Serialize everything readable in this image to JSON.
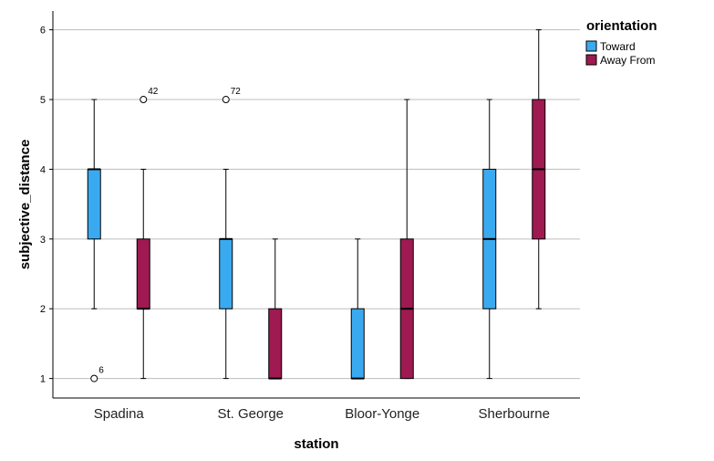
{
  "chart_data": {
    "type": "boxplot",
    "xlabel": "station",
    "ylabel": "subjective_distance",
    "ylim": [
      0.72,
      6.27
    ],
    "yticks": [
      1,
      2,
      3,
      4,
      5,
      6
    ],
    "grid": "horizontal",
    "legend": {
      "title": "orientation",
      "placement": "top-right",
      "entries": [
        {
          "name": "Toward",
          "color": "#3aaaf0"
        },
        {
          "name": "Away From",
          "color": "#9e1a50"
        }
      ]
    },
    "categories": [
      "Spadina",
      "St. George",
      "Bloor-Yonge",
      "Sherbourne"
    ],
    "series": [
      {
        "name": "Toward",
        "color": "#3aaaf0",
        "boxes": [
          {
            "min": 2,
            "q1": 3,
            "median": 4,
            "q3": 4,
            "max": 5,
            "outliers": [
              {
                "value": 1,
                "label": "6"
              }
            ]
          },
          {
            "min": 1,
            "q1": 2,
            "median": 3,
            "q3": 3,
            "max": 4,
            "outliers": [
              {
                "value": 5,
                "label": "72"
              }
            ]
          },
          {
            "min": 1,
            "q1": 1,
            "median": 1,
            "q3": 2,
            "max": 3,
            "outliers": []
          },
          {
            "min": 1,
            "q1": 2,
            "median": 3,
            "q3": 4,
            "max": 5,
            "outliers": []
          }
        ]
      },
      {
        "name": "Away From",
        "color": "#9e1a50",
        "boxes": [
          {
            "min": 1,
            "q1": 2,
            "median": 2,
            "q3": 3,
            "max": 4,
            "outliers": [
              {
                "value": 5,
                "label": "42"
              }
            ]
          },
          {
            "min": 1,
            "q1": 1,
            "median": 1,
            "q3": 2,
            "max": 3,
            "outliers": []
          },
          {
            "min": 1,
            "q1": 1,
            "median": 2,
            "q3": 3,
            "max": 5,
            "outliers": []
          },
          {
            "min": 2,
            "q1": 3,
            "median": 4,
            "q3": 5,
            "max": 6,
            "outliers": []
          }
        ]
      }
    ]
  }
}
